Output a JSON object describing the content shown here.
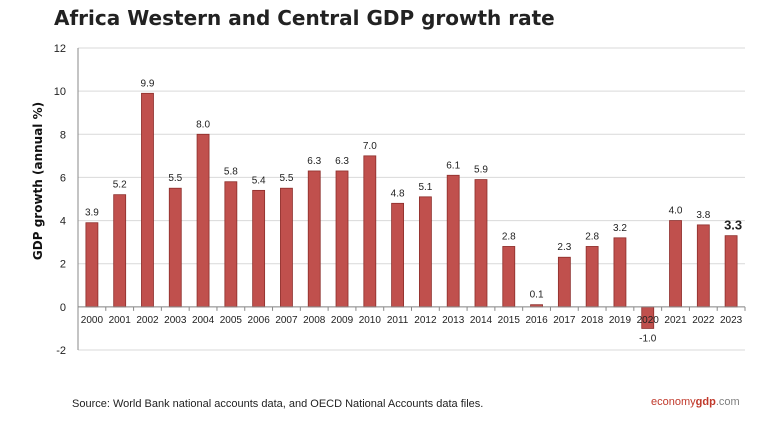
{
  "title": "Africa Western and Central GDP growth rate",
  "source": "Source: World Bank national accounts data, and OECD National Accounts data files.",
  "brand": {
    "part1": "economy",
    "part2": "gdp",
    "part3": ".com"
  },
  "colors": {
    "bar": "#c0504d",
    "bar_stroke": "#8c2d2a",
    "grid": "#d9d9d9",
    "axis": "#888888"
  },
  "chart_data": {
    "type": "bar",
    "ylabel": "GDP growth (annual %)",
    "xlabel": "",
    "ylim": [
      -2,
      12
    ],
    "yticks": [
      -2,
      0,
      2,
      4,
      6,
      8,
      10,
      12
    ],
    "grid": true,
    "categories": [
      "2000",
      "2001",
      "2002",
      "2003",
      "2004",
      "2005",
      "2006",
      "2007",
      "2008",
      "2009",
      "2010",
      "2011",
      "2012",
      "2013",
      "2014",
      "2015",
      "2016",
      "2017",
      "2018",
      "2019",
      "2020",
      "2021",
      "2022",
      "2023"
    ],
    "values": [
      3.9,
      5.2,
      9.9,
      5.5,
      8.0,
      5.8,
      5.4,
      5.5,
      6.3,
      6.3,
      7.0,
      4.8,
      5.1,
      6.1,
      5.9,
      2.8,
      0.1,
      2.3,
      2.8,
      3.2,
      -1.0,
      4.0,
      3.8,
      3.3
    ],
    "labels": [
      "3.9",
      "5.2",
      "9.9",
      "5.5",
      "8.0",
      "5.8",
      "5.4",
      "5.5",
      "6.3",
      "6.3",
      "7.0",
      "4.8",
      "5.1",
      "6.1",
      "5.9",
      "2.8",
      "0.1",
      "2.3",
      "2.8",
      "3.2",
      "-1.0",
      "4.0",
      "3.8",
      "3.3"
    ],
    "highlight_last_label": true
  }
}
